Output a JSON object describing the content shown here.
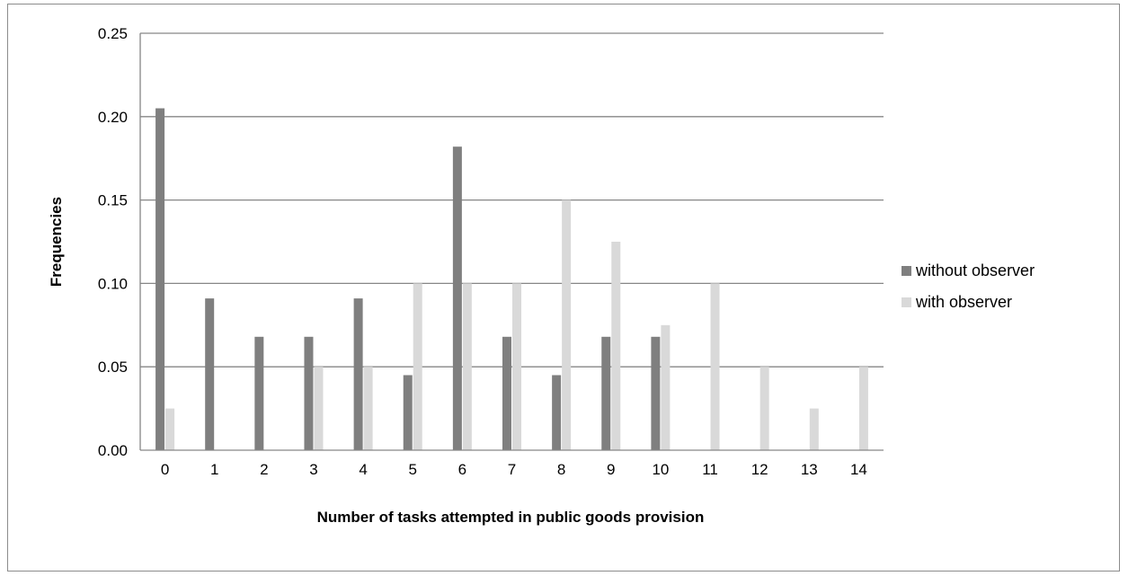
{
  "chart_data": {
    "type": "bar",
    "title": "",
    "xlabel": "Number of tasks attempted in public goods provision",
    "ylabel": "Frequencies",
    "categories": [
      "0",
      "1",
      "2",
      "3",
      "4",
      "5",
      "6",
      "7",
      "8",
      "9",
      "10",
      "11",
      "12",
      "13",
      "14"
    ],
    "ylim": [
      0,
      0.25
    ],
    "yticks": [
      "0.00",
      "0.05",
      "0.10",
      "0.15",
      "0.20",
      "0.25"
    ],
    "grid": true,
    "legend_position": "right",
    "series": [
      {
        "name": "without observer",
        "color": "#7f7f7f",
        "values": [
          0.205,
          0.091,
          0.068,
          0.068,
          0.091,
          0.045,
          0.182,
          0.068,
          0.045,
          0.068,
          0.068,
          0,
          0,
          0,
          0
        ]
      },
      {
        "name": "with observer",
        "color": "#d9d9d9",
        "values": [
          0.025,
          0,
          0,
          0.05,
          0.05,
          0.1,
          0.1,
          0.1,
          0.15,
          0.125,
          0.075,
          0.1,
          0.05,
          0.025,
          0.05
        ]
      }
    ]
  }
}
